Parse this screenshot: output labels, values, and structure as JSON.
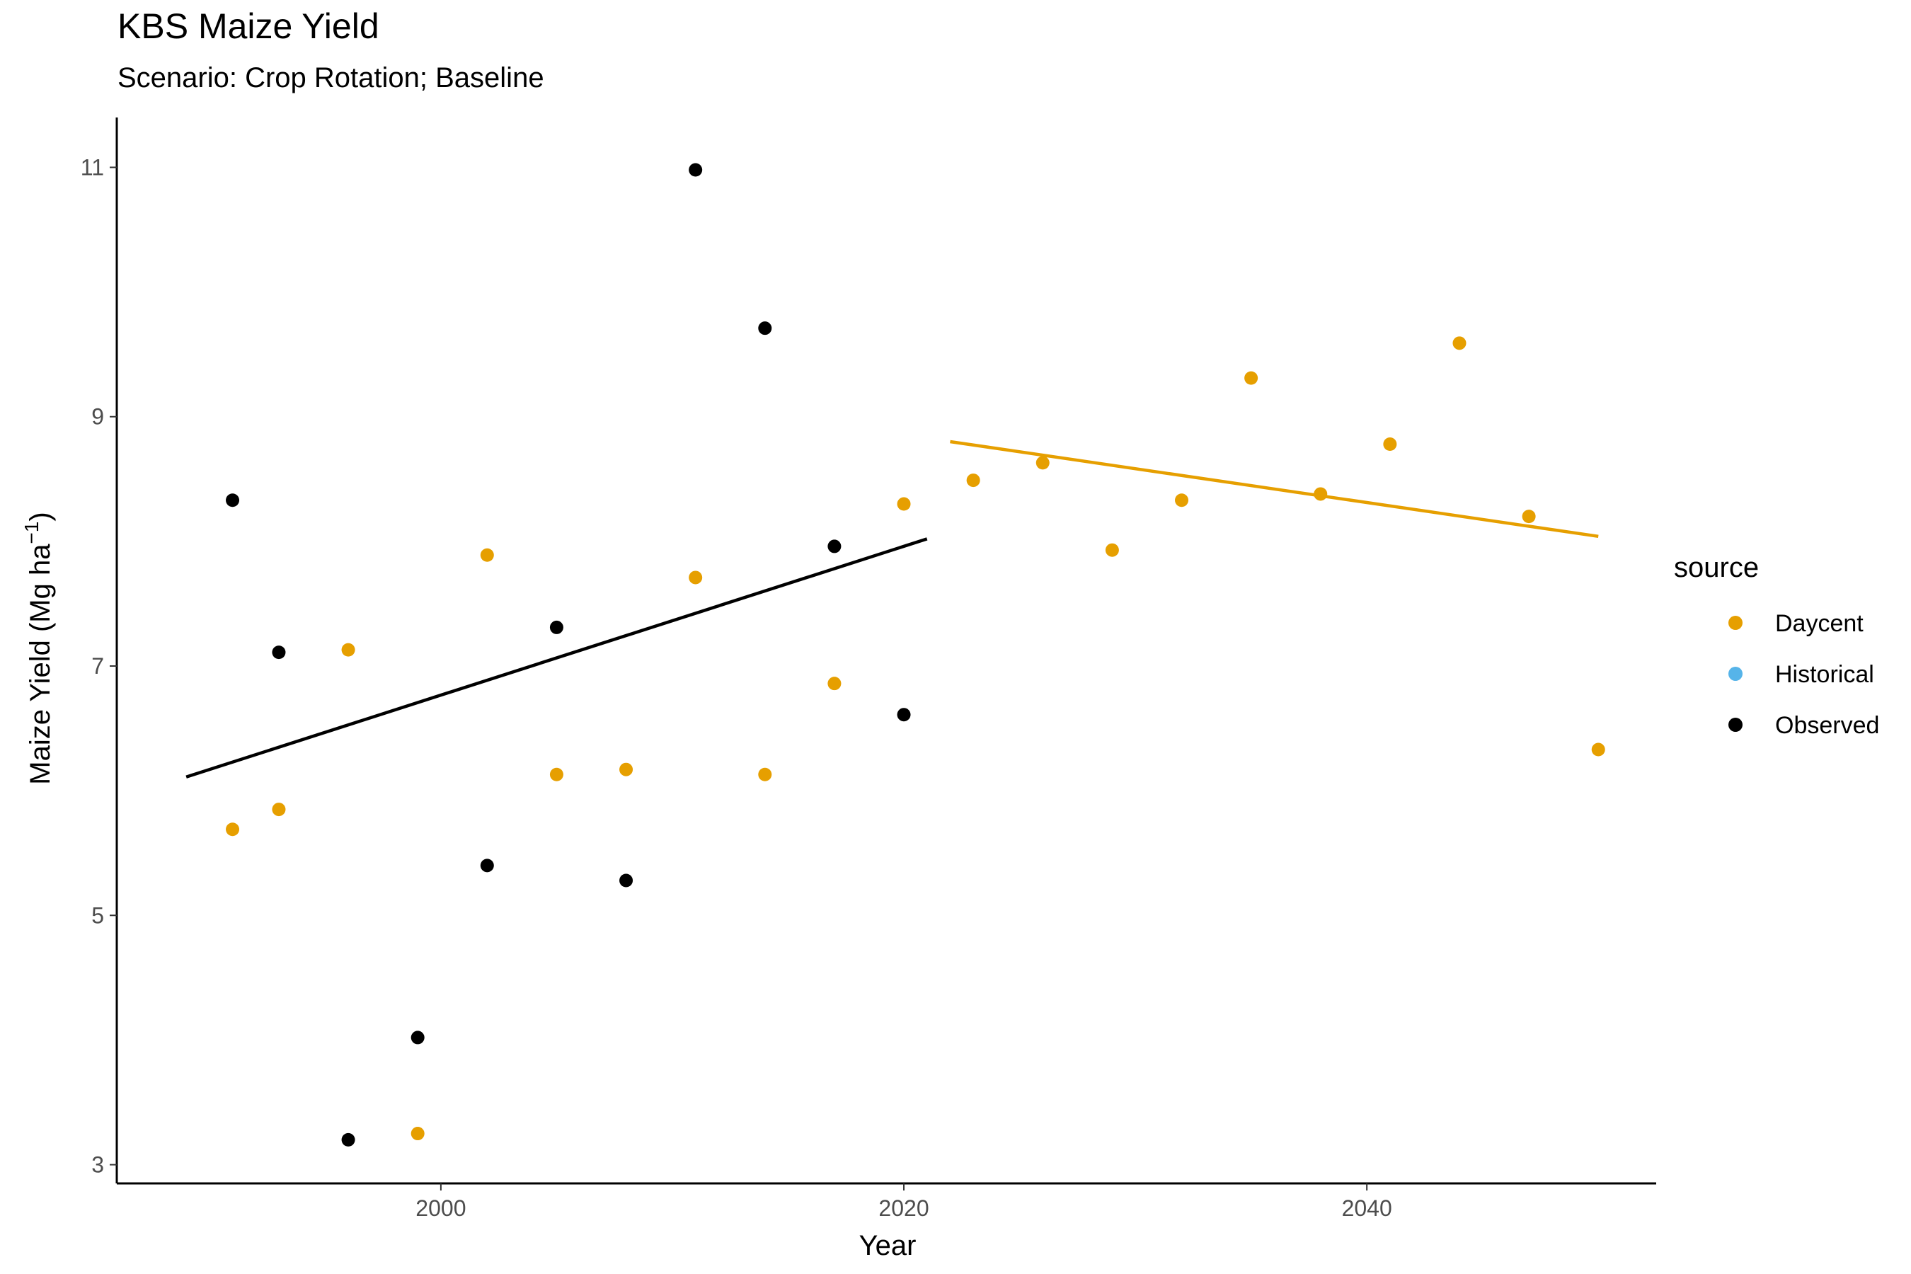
{
  "chart_data": {
    "type": "scatter",
    "title": "KBS Maize Yield",
    "subtitle": "Scenario: Crop Rotation; Baseline",
    "xlabel": "Year",
    "ylabel": "Maize Yield (Mg ha",
    "ylabel_sup": "−1",
    "ylabel_close": ")",
    "xlim": [
      1986,
      2052.5
    ],
    "ylim": [
      2.85,
      11.4
    ],
    "x_ticks": [
      2000,
      2020,
      2040
    ],
    "x_tick_labels": [
      "2000",
      "2020",
      "2040"
    ],
    "y_ticks": [
      3,
      5,
      7,
      9,
      11
    ],
    "y_tick_labels": [
      "3",
      "5",
      "7",
      "9",
      "11"
    ],
    "grid": false,
    "legend_title": "source",
    "legend_position": "right",
    "series": [
      {
        "name": "Daycent",
        "color": "#E69F00",
        "points": [
          {
            "x": 1991,
            "y": 5.69
          },
          {
            "x": 1993,
            "y": 5.85
          },
          {
            "x": 1996,
            "y": 7.13
          },
          {
            "x": 1999,
            "y": 3.25
          },
          {
            "x": 2002,
            "y": 7.89
          },
          {
            "x": 2005,
            "y": 6.13
          },
          {
            "x": 2008,
            "y": 6.17
          },
          {
            "x": 2011,
            "y": 7.71
          },
          {
            "x": 2014,
            "y": 6.13
          },
          {
            "x": 2017,
            "y": 6.86
          },
          {
            "x": 2020,
            "y": 8.3
          },
          {
            "x": 2023,
            "y": 8.49
          },
          {
            "x": 2026,
            "y": 8.63
          },
          {
            "x": 2029,
            "y": 7.93
          },
          {
            "x": 2032,
            "y": 8.33
          },
          {
            "x": 2035,
            "y": 9.31
          },
          {
            "x": 2038,
            "y": 8.38
          },
          {
            "x": 2041,
            "y": 8.78
          },
          {
            "x": 2044,
            "y": 9.59
          },
          {
            "x": 2047,
            "y": 8.2
          },
          {
            "x": 2050,
            "y": 6.33
          }
        ],
        "trend": {
          "x": [
            2022,
            2050
          ],
          "y": [
            8.8,
            8.04
          ]
        }
      },
      {
        "name": "Historical",
        "color": "#56B4E9",
        "points": []
      },
      {
        "name": "Observed",
        "color": "#000000",
        "points": [
          {
            "x": 1991,
            "y": 8.33
          },
          {
            "x": 1993,
            "y": 7.11
          },
          {
            "x": 1996,
            "y": 3.2
          },
          {
            "x": 1999,
            "y": 4.02
          },
          {
            "x": 2002,
            "y": 5.4
          },
          {
            "x": 2005,
            "y": 7.31
          },
          {
            "x": 2008,
            "y": 5.28
          },
          {
            "x": 2011,
            "y": 10.98
          },
          {
            "x": 2014,
            "y": 9.71
          },
          {
            "x": 2017,
            "y": 7.96
          },
          {
            "x": 2020,
            "y": 6.61
          }
        ],
        "trend": {
          "x": [
            1989,
            2021
          ],
          "y": [
            6.11,
            8.02
          ]
        }
      }
    ]
  }
}
